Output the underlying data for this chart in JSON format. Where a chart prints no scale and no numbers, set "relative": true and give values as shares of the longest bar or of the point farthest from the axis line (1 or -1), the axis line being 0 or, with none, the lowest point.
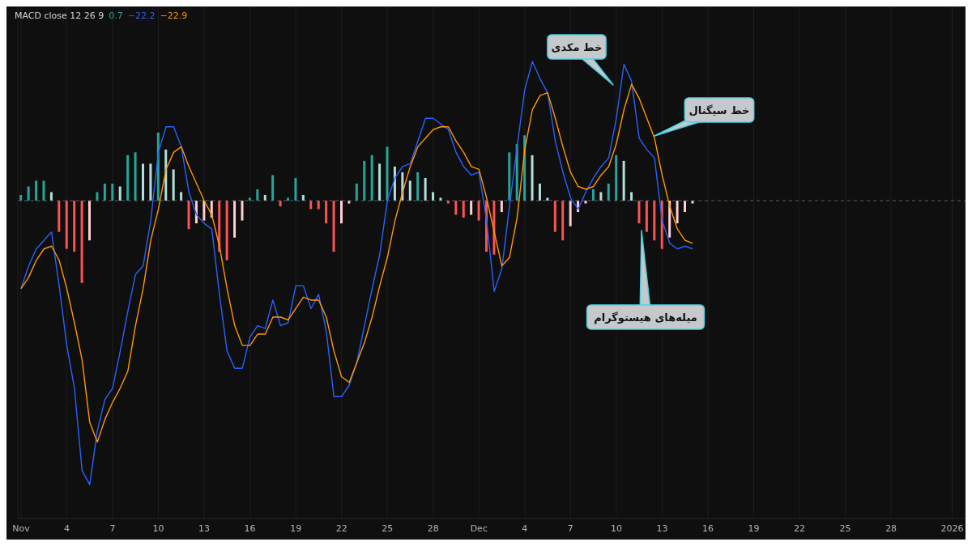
{
  "chart_data": {
    "type": "line",
    "title": "MACD close 12 26 9",
    "relative": true,
    "grid": "x",
    "x": [
      "2025-11-01T00:00",
      "2025-11-01T12:00",
      "2025-11-02T00:00",
      "2025-11-02T12:00",
      "2025-11-03T00:00",
      "2025-11-03T12:00",
      "2025-11-04T00:00",
      "2025-11-04T12:00",
      "2025-11-05T00:00",
      "2025-11-05T12:00",
      "2025-11-06T00:00",
      "2025-11-06T12:00",
      "2025-11-07T00:00",
      "2025-11-07T12:00",
      "2025-11-08T00:00",
      "2025-11-08T12:00",
      "2025-11-09T00:00",
      "2025-11-09T12:00",
      "2025-11-10T00:00",
      "2025-11-10T12:00",
      "2025-11-11T00:00",
      "2025-11-11T12:00",
      "2025-11-12T00:00",
      "2025-11-12T12:00",
      "2025-11-13T00:00",
      "2025-11-13T12:00",
      "2025-11-14T00:00",
      "2025-11-14T12:00",
      "2025-11-15T00:00",
      "2025-11-15T12:00",
      "2025-11-16T00:00",
      "2025-11-16T12:00",
      "2025-11-17T00:00",
      "2025-11-17T12:00",
      "2025-11-18T00:00",
      "2025-11-18T12:00",
      "2025-11-19T00:00",
      "2025-11-19T12:00",
      "2025-11-20T00:00",
      "2025-11-20T12:00",
      "2025-11-21T00:00",
      "2025-11-21T12:00",
      "2025-11-22T00:00",
      "2025-11-22T12:00",
      "2025-11-23T00:00",
      "2025-11-23T12:00",
      "2025-11-24T00:00",
      "2025-11-24T12:00",
      "2025-11-25T00:00",
      "2025-11-25T12:00",
      "2025-11-26T00:00",
      "2025-11-26T12:00",
      "2025-11-27T00:00",
      "2025-11-27T12:00",
      "2025-11-28T00:00",
      "2025-11-28T12:00",
      "2025-11-29T00:00",
      "2025-11-29T12:00",
      "2025-11-30T00:00",
      "2025-11-30T12:00",
      "2025-12-01T00:00",
      "2025-12-01T12:00",
      "2025-12-02T00:00",
      "2025-12-02T12:00",
      "2025-12-03T00:00",
      "2025-12-03T12:00",
      "2025-12-04T00:00",
      "2025-12-04T12:00",
      "2025-12-05T00:00",
      "2025-12-05T12:00",
      "2025-12-06T00:00",
      "2025-12-06T12:00",
      "2025-12-07T00:00",
      "2025-12-07T12:00",
      "2025-12-08T00:00",
      "2025-12-08T12:00",
      "2025-12-09T00:00",
      "2025-12-09T12:00",
      "2025-12-10T00:00",
      "2025-12-10T12:00",
      "2025-12-11T00:00",
      "2025-12-11T12:00",
      "2025-12-12T00:00",
      "2025-12-12T12:00",
      "2025-12-13T00:00",
      "2025-12-13T12:00",
      "2025-12-14T00:00",
      "2025-12-14T12:00",
      "2025-12-15T00:00"
    ],
    "series": [
      {
        "type": "bar",
        "values": [
          0.02,
          0.05,
          0.07,
          0.07,
          0.03,
          -0.11,
          -0.17,
          -0.18,
          -0.29,
          -0.14,
          0.03,
          0.06,
          0.06,
          0.05,
          0.16,
          0.17,
          0.13,
          0.13,
          0.24,
          0.18,
          0.11,
          0.03,
          -0.1,
          -0.08,
          -0.07,
          -0.06,
          -0.18,
          -0.21,
          -0.13,
          -0.07,
          0.01,
          0.04,
          0.02,
          0.09,
          -0.02,
          0.01,
          0.08,
          0.02,
          -0.03,
          -0.03,
          -0.08,
          -0.18,
          -0.08,
          -0.01,
          0.06,
          0.14,
          0.16,
          0.13,
          0.19,
          0.12,
          0.1,
          0.07,
          0.1,
          0.08,
          0.03,
          0.01,
          -0.01,
          -0.05,
          -0.06,
          -0.05,
          -0.07,
          -0.18,
          -0.19,
          -0.04,
          0.17,
          0.2,
          0.23,
          0.16,
          0.06,
          0.01,
          -0.11,
          -0.14,
          -0.09,
          -0.04,
          -0.01,
          0.04,
          0.03,
          0.06,
          0.16,
          0.14,
          0.03,
          -0.08,
          -0.11,
          -0.14,
          -0.17,
          -0.13,
          -0.08,
          -0.04,
          -0.01
        ],
        "colors": [
          "#26a69a",
          "#26a69a",
          "#26a69a",
          "#26a69a",
          "#b2dfdb",
          "#ff5252",
          "#ff5252",
          "#ff5252",
          "#ff5252",
          "#ffcdd2",
          "#26a69a",
          "#26a69a",
          "#26a69a",
          "#b2dfdb",
          "#26a69a",
          "#26a69a",
          "#b2dfdb",
          "#b2dfdb",
          "#26a69a",
          "#b2dfdb",
          "#b2dfdb",
          "#b2dfdb",
          "#ff5252",
          "#ffcdd2",
          "#ffcdd2",
          "#ffcdd2",
          "#ff5252",
          "#ff5252",
          "#ffcdd2",
          "#ffcdd2",
          "#26a69a",
          "#26a69a",
          "#b2dfdb",
          "#26a69a",
          "#ff5252",
          "#26a69a",
          "#26a69a",
          "#b2dfdb",
          "#ff5252",
          "#ff5252",
          "#ff5252",
          "#ff5252",
          "#ffcdd2",
          "#ffcdd2",
          "#26a69a",
          "#26a69a",
          "#26a69a",
          "#b2dfdb",
          "#26a69a",
          "#b2dfdb",
          "#b2dfdb",
          "#b2dfdb",
          "#26a69a",
          "#b2dfdb",
          "#b2dfdb",
          "#b2dfdb",
          "#ff5252",
          "#ff5252",
          "#ff5252",
          "#ffcdd2",
          "#ff5252",
          "#ff5252",
          "#ff5252",
          "#ffcdd2",
          "#26a69a",
          "#26a69a",
          "#26a69a",
          "#b2dfdb",
          "#b2dfdb",
          "#b2dfdb",
          "#ff5252",
          "#ff5252",
          "#ffcdd2",
          "#ffcdd2",
          "#ffcdd2",
          "#26a69a",
          "#b2dfdb",
          "#26a69a",
          "#26a69a",
          "#b2dfdb",
          "#b2dfdb",
          "#ff5252",
          "#ff5252",
          "#ff5252",
          "#ff5252",
          "#ffcdd2",
          "#ffcdd2",
          "#ffcdd2",
          "#ffcdd2"
        ]
      },
      {
        "color": "#2962ff",
        "values": [
          -0.31,
          -0.23,
          -0.17,
          -0.14,
          -0.11,
          -0.3,
          -0.51,
          -0.66,
          -0.95,
          -1.0,
          -0.81,
          -0.7,
          -0.66,
          -0.53,
          -0.39,
          -0.26,
          -0.23,
          -0.07,
          0.17,
          0.26,
          0.26,
          0.19,
          0.03,
          -0.05,
          -0.08,
          -0.1,
          -0.33,
          -0.53,
          -0.59,
          -0.59,
          -0.48,
          -0.44,
          -0.45,
          -0.35,
          -0.44,
          -0.43,
          -0.3,
          -0.3,
          -0.38,
          -0.33,
          -0.46,
          -0.69,
          -0.69,
          -0.65,
          -0.57,
          -0.44,
          -0.31,
          -0.19,
          0.0,
          0.08,
          0.12,
          0.13,
          0.21,
          0.29,
          0.29,
          0.27,
          0.25,
          0.17,
          0.12,
          0.09,
          0.1,
          -0.07,
          -0.32,
          -0.24,
          -0.02,
          0.19,
          0.39,
          0.49,
          0.43,
          0.38,
          0.21,
          0.1,
          0.01,
          -0.03,
          0.03,
          0.08,
          0.12,
          0.15,
          0.29,
          0.48,
          0.42,
          0.22,
          0.18,
          0.15,
          -0.07,
          -0.15,
          -0.17,
          -0.16,
          -0.17
        ]
      },
      {
        "color": "#ff9800",
        "values": [
          -0.31,
          -0.27,
          -0.21,
          -0.17,
          -0.16,
          -0.21,
          -0.31,
          -0.43,
          -0.56,
          -0.78,
          -0.85,
          -0.77,
          -0.71,
          -0.66,
          -0.6,
          -0.44,
          -0.31,
          -0.14,
          -0.03,
          0.11,
          0.17,
          0.19,
          0.12,
          0.06,
          0.0,
          -0.05,
          -0.16,
          -0.31,
          -0.44,
          -0.51,
          -0.51,
          -0.47,
          -0.47,
          -0.41,
          -0.41,
          -0.42,
          -0.38,
          -0.34,
          -0.35,
          -0.35,
          -0.41,
          -0.53,
          -0.62,
          -0.64,
          -0.57,
          -0.5,
          -0.41,
          -0.3,
          -0.2,
          -0.07,
          0.03,
          0.12,
          0.19,
          0.22,
          0.25,
          0.26,
          0.26,
          0.21,
          0.17,
          0.12,
          0.11,
          0.01,
          -0.11,
          -0.23,
          -0.2,
          -0.06,
          0.18,
          0.32,
          0.37,
          0.38,
          0.29,
          0.19,
          0.1,
          0.05,
          0.04,
          0.05,
          0.09,
          0.12,
          0.2,
          0.32,
          0.41,
          0.36,
          0.29,
          0.22,
          0.09,
          -0.02,
          -0.1,
          -0.14,
          -0.15
        ]
      }
    ],
    "xlim": [
      "2025-10-31T19:00",
      "2026-01-01T21:00"
    ],
    "xticks": [
      {
        "value": "2025-11-01",
        "label": "Nov"
      },
      {
        "value": "2025-11-04",
        "label": "4"
      },
      {
        "value": "2025-11-07",
        "label": "7"
      },
      {
        "value": "2025-11-10",
        "label": "10"
      },
      {
        "value": "2025-11-13",
        "label": "13"
      },
      {
        "value": "2025-11-16",
        "label": "16"
      },
      {
        "value": "2025-11-19",
        "label": "19"
      },
      {
        "value": "2025-11-22",
        "label": "22"
      },
      {
        "value": "2025-11-25",
        "label": "25"
      },
      {
        "value": "2025-11-28",
        "label": "28"
      },
      {
        "value": "2025-12-01",
        "label": "Dec"
      },
      {
        "value": "2025-12-04",
        "label": "4"
      },
      {
        "value": "2025-12-07",
        "label": "7"
      },
      {
        "value": "2025-12-10",
        "label": "10"
      },
      {
        "value": "2025-12-13",
        "label": "13"
      },
      {
        "value": "2025-12-16",
        "label": "16"
      },
      {
        "value": "2025-12-19",
        "label": "19"
      },
      {
        "value": "2025-12-22",
        "label": "22"
      },
      {
        "value": "2025-12-25",
        "label": "25"
      },
      {
        "value": "2025-12-28",
        "label": "28"
      },
      {
        "value": "2026-01-01",
        "label": "2026"
      }
    ],
    "ref_lines": [
      {
        "axis": "y",
        "value": 0,
        "color": "#5d606b",
        "line_style": "dashed"
      }
    ],
    "annotations": [
      "0.7",
      "−22.2",
      "−22.9",
      "خط مکدی",
      "خط سیگنال",
      "میله‌های هیستوگرام"
    ]
  }
}
